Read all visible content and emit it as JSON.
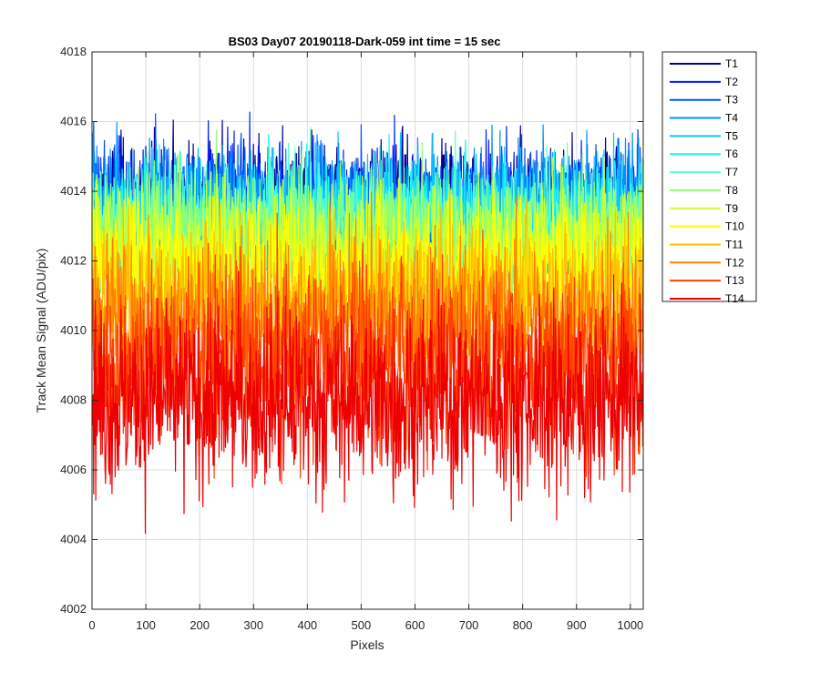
{
  "chart_data": {
    "type": "line",
    "title": "BS03 Day07 20190118-Dark-059 int time = 15 sec",
    "xlabel": "Pixels",
    "ylabel": "Track Mean Signal (ADU/pix)",
    "xlim": [
      0,
      1024
    ],
    "ylim": [
      4002,
      4018
    ],
    "x_ticks": [
      0,
      100,
      200,
      300,
      400,
      500,
      600,
      700,
      800,
      900,
      1000
    ],
    "y_ticks": [
      4002,
      4004,
      4006,
      4008,
      4010,
      4012,
      4014,
      4016,
      4018
    ],
    "grid": true,
    "legend_position": "outside-top-right",
    "n_points": 1024,
    "series": [
      {
        "name": "T1",
        "color": "#00008f",
        "mean": 4013.7,
        "spread": 0.85
      },
      {
        "name": "T2",
        "color": "#0020ff",
        "mean": 4013.6,
        "spread": 0.85
      },
      {
        "name": "T3",
        "color": "#0050ff",
        "mean": 4013.5,
        "spread": 0.85
      },
      {
        "name": "T4",
        "color": "#0090ff",
        "mean": 4013.5,
        "spread": 0.9
      },
      {
        "name": "T5",
        "color": "#10c0ff",
        "mean": 4013.4,
        "spread": 0.9
      },
      {
        "name": "T6",
        "color": "#20f0f0",
        "mean": 4013.2,
        "spread": 0.9
      },
      {
        "name": "T7",
        "color": "#60ffc0",
        "mean": 4013.0,
        "spread": 0.9
      },
      {
        "name": "T8",
        "color": "#90ff70",
        "mean": 4012.7,
        "spread": 0.95
      },
      {
        "name": "T9",
        "color": "#d0ff30",
        "mean": 4012.3,
        "spread": 1.0
      },
      {
        "name": "T10",
        "color": "#ffff00",
        "mean": 4011.7,
        "spread": 1.05
      },
      {
        "name": "T11",
        "color": "#ffc000",
        "mean": 4011.0,
        "spread": 1.1
      },
      {
        "name": "T12",
        "color": "#ff8000",
        "mean": 4010.2,
        "spread": 1.2
      },
      {
        "name": "T13",
        "color": "#ff4000",
        "mean": 4009.2,
        "spread": 1.3
      },
      {
        "name": "T14",
        "color": "#ee0000",
        "mean": 4008.0,
        "spread": 1.35
      }
    ]
  }
}
